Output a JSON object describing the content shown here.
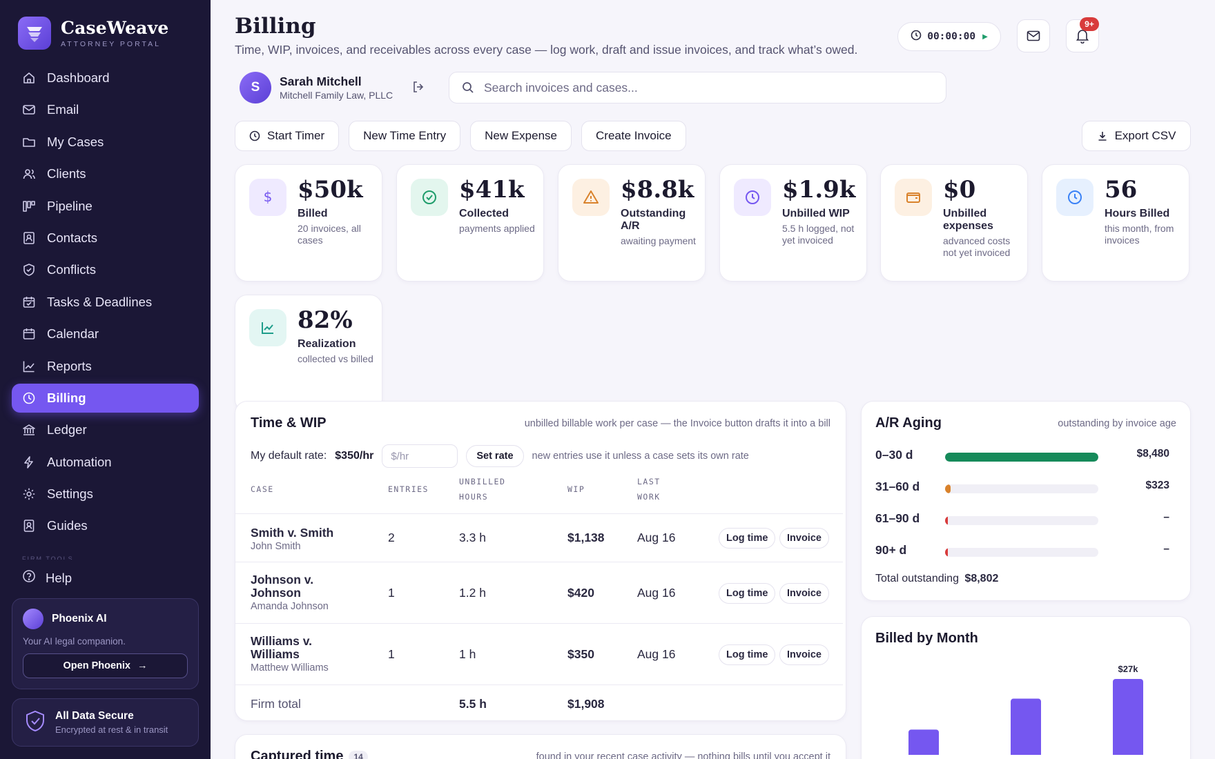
{
  "app": {
    "name": "CaseWeave",
    "subtitle": "ATTORNEY PORTAL"
  },
  "sidebar": {
    "items": [
      {
        "label": "Dashboard",
        "icon": "home-icon"
      },
      {
        "label": "Email",
        "icon": "mail-icon"
      },
      {
        "label": "My Cases",
        "icon": "folder-icon"
      },
      {
        "label": "Clients",
        "icon": "users-icon"
      },
      {
        "label": "Pipeline",
        "icon": "kanban-icon"
      },
      {
        "label": "Contacts",
        "icon": "contact-card-icon"
      },
      {
        "label": "Conflicts",
        "icon": "shield-check-icon"
      },
      {
        "label": "Tasks & Deadlines",
        "icon": "calendar-check-icon"
      },
      {
        "label": "Calendar",
        "icon": "calendar-icon"
      },
      {
        "label": "Reports",
        "icon": "line-chart-icon"
      },
      {
        "label": "Billing",
        "icon": "clock-dollar-icon",
        "active": true
      },
      {
        "label": "Ledger",
        "icon": "bank-icon"
      },
      {
        "label": "Automation",
        "icon": "bolt-icon"
      },
      {
        "label": "Settings",
        "icon": "gear-icon"
      },
      {
        "label": "Guides",
        "icon": "book-icon"
      }
    ],
    "section_label": "FIRM TOOLS",
    "help_label": "Help",
    "ai": {
      "title": "Phoenix AI",
      "subtitle": "Your AI legal companion.",
      "button": "Open Phoenix"
    },
    "security": {
      "title": "All Data Secure",
      "subtitle": "Encrypted at rest & in transit"
    }
  },
  "header": {
    "title": "Billing",
    "subtitle": "Time, WIP, invoices, and receivables across every case — log work, draft and issue invoices, and track what’s owed.",
    "timer": "00:00:00",
    "notifications": "9+"
  },
  "user": {
    "initial": "S",
    "name": "Sarah Mitchell",
    "firm": "Mitchell Family Law, PLLC"
  },
  "search": {
    "placeholder": "Search invoices and cases..."
  },
  "actions": {
    "start_timer": "Start Timer",
    "new_time": "New Time Entry",
    "new_expense": "New Expense",
    "create_invoice": "Create Invoice",
    "export": "Export CSV"
  },
  "kpis": [
    {
      "value": "$50k",
      "label": "Billed",
      "note": "20 invoices, all cases",
      "color": "#7557f0",
      "bg": "#efeaff",
      "icon": "dollar-icon"
    },
    {
      "value": "$41k",
      "label": "Collected",
      "note": "payments applied",
      "color": "#1f9d6b",
      "bg": "#e3f6ee",
      "icon": "check-circle-icon"
    },
    {
      "value": "$8.8k",
      "label": "Outstanding A/R",
      "note": "awaiting payment",
      "color": "#d9822b",
      "bg": "#fdf0e2",
      "icon": "warning-icon"
    },
    {
      "value": "$1.9k",
      "label": "Unbilled WIP",
      "note": "5.5 h logged, not yet invoiced",
      "color": "#7557f0",
      "bg": "#efeaff",
      "icon": "clock-icon"
    },
    {
      "value": "$0",
      "label": "Unbilled expenses",
      "note": "advanced costs not yet invoiced",
      "color": "#d9822b",
      "bg": "#fdf0e2",
      "icon": "wallet-icon"
    },
    {
      "value": "56",
      "label": "Hours Billed",
      "note": "this month, from invoices",
      "color": "#3b82f6",
      "bg": "#e6f0fe",
      "icon": "clock-icon"
    },
    {
      "value": "82%",
      "label": "Realization",
      "note": "collected vs billed",
      "color": "#1f9d8b",
      "bg": "#e3f6f3",
      "icon": "trend-chart-icon"
    }
  ],
  "wip": {
    "title": "Time & WIP",
    "hint": "unbilled billable work per case — the Invoice button drafts it into a bill",
    "rate_label": "My default rate:",
    "rate_value": "$350/hr",
    "rate_placeholder": "$/hr",
    "set_rate": "Set rate",
    "rate_hint": "new entries use it unless a case sets its own rate",
    "columns": {
      "case": "CASE",
      "entries": "ENTRIES",
      "hours_1": "UNBILLED",
      "hours_2": "HOURS",
      "wip": "WIP",
      "last_1": "LAST",
      "last_2": "WORK"
    },
    "rows": [
      {
        "case": "Smith v. Smith",
        "client": "John Smith",
        "entries": "2",
        "hours": "3.3 h",
        "wip": "$1,138",
        "last": "Aug 16"
      },
      {
        "case": "Johnson v. Johnson",
        "client": "Amanda Johnson",
        "entries": "1",
        "hours": "1.2 h",
        "wip": "$420",
        "last": "Aug 16"
      },
      {
        "case": "Williams v. Williams",
        "client": "Matthew Williams",
        "entries": "1",
        "hours": "1 h",
        "wip": "$350",
        "last": "Aug 16"
      }
    ],
    "log_time": "Log time",
    "invoice": "Invoice",
    "total_label": "Firm total",
    "total_hours": "5.5 h",
    "total_wip": "$1,908"
  },
  "captured": {
    "title": "Captured time",
    "count": "14",
    "hint": "found in your recent case activity — nothing bills until you accept it"
  },
  "aging": {
    "title": "A/R Aging",
    "hint": "outstanding by invoice age",
    "buckets": [
      {
        "label": "0–30 d",
        "amount": "$8,480",
        "fraction": 1.0,
        "color": "#168a5a"
      },
      {
        "label": "31–60 d",
        "amount": "$323",
        "fraction": 0.038,
        "color": "#d9822b"
      },
      {
        "label": "61–90 d",
        "amount": "–",
        "fraction": 0.008,
        "color": "#d83b3b"
      },
      {
        "label": "90+ d",
        "amount": "–",
        "fraction": 0.008,
        "color": "#d83b3b"
      }
    ],
    "total_label": "Total outstanding",
    "total": "$8,802"
  },
  "chart_data": {
    "type": "bar",
    "title": "Billed by Month",
    "series": [
      {
        "values": [
          9,
          20,
          27
        ]
      }
    ],
    "data_labels": [
      "",
      "",
      "$27k"
    ],
    "unit": "$k",
    "color": "#7557f0"
  }
}
